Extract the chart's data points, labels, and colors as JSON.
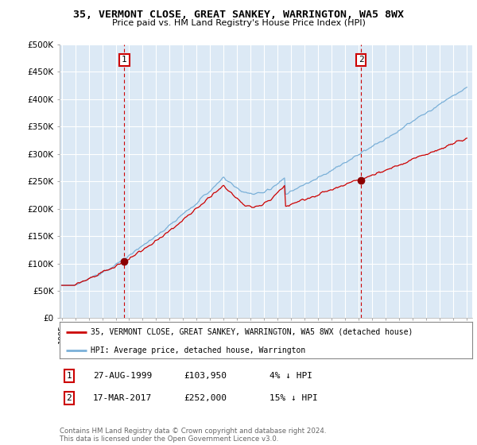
{
  "title": "35, VERMONT CLOSE, GREAT SANKEY, WARRINGTON, WA5 8WX",
  "subtitle": "Price paid vs. HM Land Registry's House Price Index (HPI)",
  "background_color": "#ffffff",
  "plot_bg_color": "#dce9f5",
  "grid_color": "#ffffff",
  "hpi_color": "#7ab0d8",
  "price_color": "#cc0000",
  "sale1_year": 1999.64,
  "sale1_price": 103950,
  "sale2_year": 2017.17,
  "sale2_price": 252000,
  "legend_line1": "35, VERMONT CLOSE, GREAT SANKEY, WARRINGTON, WA5 8WX (detached house)",
  "legend_line2": "HPI: Average price, detached house, Warrington",
  "table_row1": [
    "1",
    "27-AUG-1999",
    "£103,950",
    "4% ↓ HPI"
  ],
  "table_row2": [
    "2",
    "17-MAR-2017",
    "£252,000",
    "15% ↓ HPI"
  ],
  "footer": "Contains HM Land Registry data © Crown copyright and database right 2024.\nThis data is licensed under the Open Government Licence v3.0.",
  "ylim": [
    0,
    500000
  ],
  "yticks": [
    0,
    50000,
    100000,
    150000,
    200000,
    250000,
    300000,
    350000,
    400000,
    450000,
    500000
  ],
  "ytick_labels": [
    "£0",
    "£50K",
    "£100K",
    "£150K",
    "£200K",
    "£250K",
    "£300K",
    "£350K",
    "£400K",
    "£450K",
    "£500K"
  ],
  "xstart_year": 1995,
  "xend_year": 2025
}
